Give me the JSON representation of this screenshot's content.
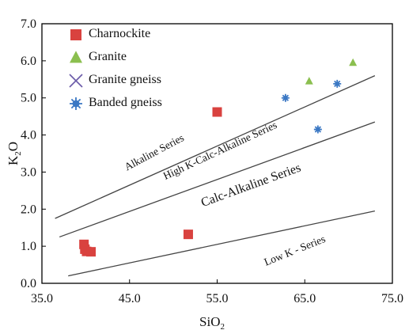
{
  "chart_data": {
    "type": "scatter",
    "xlabel": "SiO",
    "xlabel_sub": "2",
    "ylabel": "K",
    "ylabel_sub": "2",
    "ylabel_tail": "O",
    "xlim": [
      35,
      75
    ],
    "ylim": [
      0,
      7
    ],
    "x_ticks": [
      35,
      45,
      55,
      65,
      75
    ],
    "x_tick_labels": [
      "35.0",
      "45.0",
      "55.0",
      "65.0",
      "75.0"
    ],
    "y_ticks": [
      0,
      1,
      2,
      3,
      4,
      5,
      6,
      7
    ],
    "y_tick_labels": [
      "0.0",
      "1.0",
      "2.0",
      "3.0",
      "4.0",
      "5.0",
      "6.0",
      "7.0"
    ],
    "legend_position": "top-left",
    "series": [
      {
        "name": "Charnockite",
        "marker": "square",
        "color": "#d9423f",
        "points": [
          [
            39.8,
            1.05
          ],
          [
            39.9,
            0.92
          ],
          [
            40.1,
            0.86
          ],
          [
            40.6,
            0.85
          ],
          [
            51.7,
            1.32
          ],
          [
            55.0,
            4.62
          ]
        ]
      },
      {
        "name": "Granite",
        "marker": "triangle",
        "color": "#8bbf4f",
        "points": [
          [
            65.5,
            5.45
          ],
          [
            70.5,
            5.95
          ]
        ]
      },
      {
        "name": "Granite gneiss",
        "marker": "cross",
        "color": "#6a5aa8",
        "points": []
      },
      {
        "name": "Banded gneiss",
        "marker": "asterisk",
        "color": "#3b78c4",
        "points": [
          [
            62.8,
            5.0
          ],
          [
            66.5,
            4.15
          ],
          [
            68.7,
            5.38
          ]
        ]
      }
    ],
    "boundary_lines": [
      {
        "name": "upper",
        "points": [
          [
            36.5,
            1.75
          ],
          [
            73.0,
            5.6
          ]
        ]
      },
      {
        "name": "middle",
        "points": [
          [
            37.0,
            1.25
          ],
          [
            73.0,
            4.35
          ]
        ]
      },
      {
        "name": "lower",
        "points": [
          [
            38.0,
            0.2
          ],
          [
            73.0,
            1.95
          ]
        ]
      }
    ],
    "annotations": [
      {
        "text": "Alkaline Series",
        "x": 48.0,
        "y": 3.45,
        "angle": -28,
        "style": "small"
      },
      {
        "text": "High K-Calc-Alkaline Series",
        "x": 55.5,
        "y": 3.5,
        "angle": -25,
        "style": "small"
      },
      {
        "text": "Calc-Alkaline Series",
        "x": 59.0,
        "y": 2.55,
        "angle": -20,
        "style": "big"
      },
      {
        "text": "Low K - Series",
        "x": 64.0,
        "y": 0.8,
        "angle": -22,
        "style": "small"
      }
    ]
  }
}
